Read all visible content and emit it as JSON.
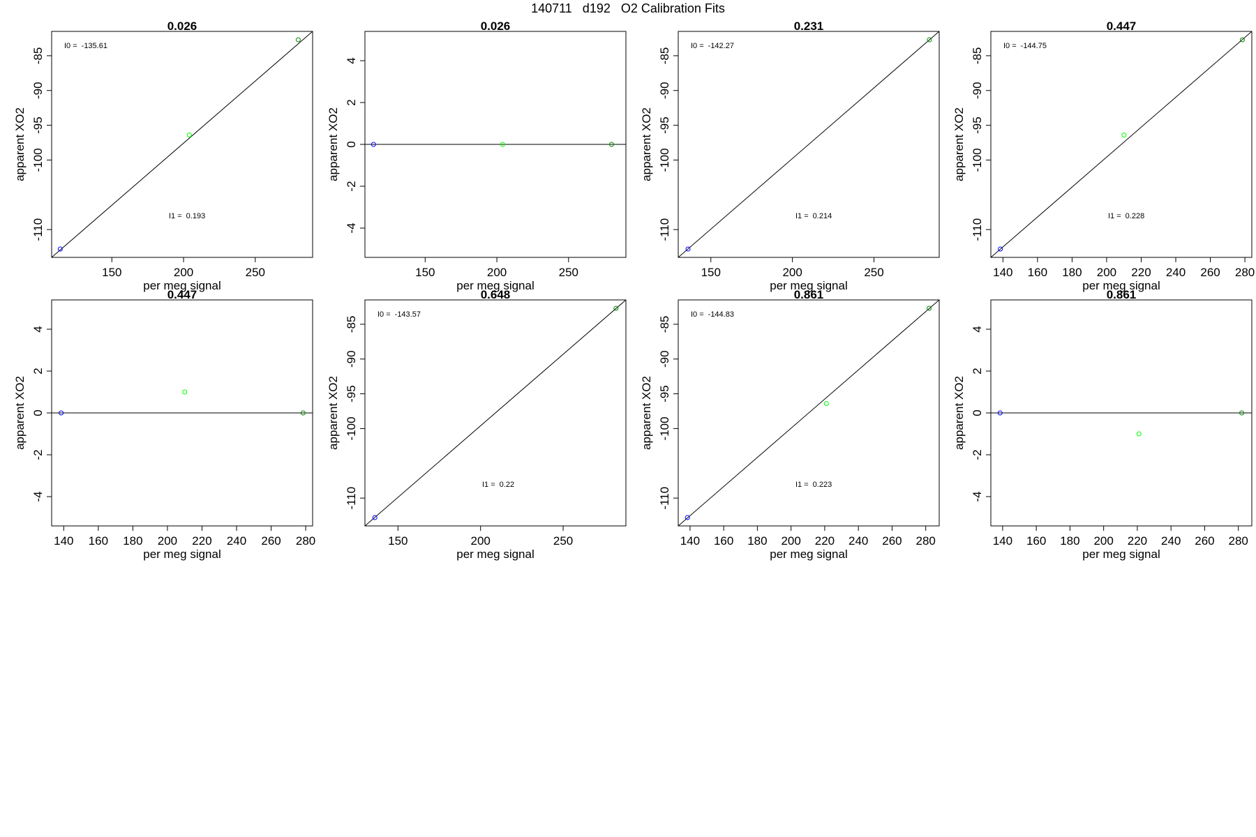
{
  "figure": {
    "title": "140711   d192   O2 Calibration Fits"
  },
  "chart_data": [
    {
      "type": "scatter",
      "title": "0.026",
      "xlabel": "per meg signal",
      "ylabel": "apparent XO2",
      "xlim": [
        108,
        290
      ],
      "ylim": [
        -114.0,
        -81.5
      ],
      "xticks": [
        150,
        200,
        250
      ],
      "yticks": [
        -110,
        -100,
        -95,
        -90,
        -85
      ],
      "fit_line": {
        "from": [
          108,
          -114.0
        ],
        "to": [
          290,
          -81.5
        ]
      },
      "points": [
        {
          "x": 114,
          "y": -112.8,
          "color": "#0000ff"
        },
        {
          "x": 204,
          "y": -96.4,
          "color": "#00ff00"
        },
        {
          "x": 280,
          "y": -82.7,
          "color": "#008800"
        }
      ],
      "annotations": [
        {
          "label": "I0 =",
          "value": "-135.61",
          "pos": "top-left"
        },
        {
          "label": "I1 =",
          "value": "0.193",
          "pos": "lower-middle"
        }
      ]
    },
    {
      "type": "scatter",
      "title": "0.026",
      "xlabel": "per meg signal",
      "ylabel": "apparent XO2",
      "xlim": [
        108,
        290
      ],
      "ylim": [
        -5.4,
        5.4
      ],
      "xticks": [
        150,
        200,
        250
      ],
      "yticks": [
        -4,
        -2,
        0,
        2,
        4
      ],
      "fit_line": {
        "from": [
          108,
          0
        ],
        "to": [
          290,
          0
        ]
      },
      "points": [
        {
          "x": 114,
          "y": 0,
          "color": "#0000ff"
        },
        {
          "x": 204,
          "y": 0,
          "color": "#00ff00"
        },
        {
          "x": 280,
          "y": 0,
          "color": "#008800"
        }
      ],
      "annotations": []
    },
    {
      "type": "scatter",
      "title": "0.231",
      "xlabel": "per meg signal",
      "ylabel": "apparent XO2",
      "xlim": [
        130,
        290
      ],
      "ylim": [
        -114.0,
        -81.5
      ],
      "xticks": [
        150,
        200,
        250
      ],
      "yticks": [
        -110,
        -100,
        -95,
        -90,
        -85
      ],
      "fit_line": {
        "from": [
          130,
          -114.0
        ],
        "to": [
          290,
          -81.5
        ]
      },
      "points": [
        {
          "x": 136,
          "y": -112.8,
          "color": "#0000ff"
        },
        {
          "x": 284,
          "y": -82.7,
          "color": "#008800"
        }
      ],
      "annotations": [
        {
          "label": "I0 =",
          "value": "-142.27",
          "pos": "top-left"
        },
        {
          "label": "I1 =",
          "value": "0.214",
          "pos": "lower-middle"
        }
      ]
    },
    {
      "type": "scatter",
      "title": "0.447",
      "xlabel": "per meg signal",
      "ylabel": "apparent XO2",
      "xlim": [
        133,
        284
      ],
      "ylim": [
        -114.0,
        -81.5
      ],
      "xticks": [
        140,
        160,
        180,
        200,
        220,
        240,
        260,
        280
      ],
      "yticks": [
        -110,
        -100,
        -95,
        -90,
        -85
      ],
      "fit_line": {
        "from": [
          133,
          -114.0
        ],
        "to": [
          284,
          -81.5
        ]
      },
      "points": [
        {
          "x": 138.5,
          "y": -112.8,
          "color": "#0000ff"
        },
        {
          "x": 210,
          "y": -96.4,
          "color": "#00ff00"
        },
        {
          "x": 278.5,
          "y": -82.7,
          "color": "#008800"
        }
      ],
      "annotations": [
        {
          "label": "I0 =",
          "value": "-144.75",
          "pos": "top-left"
        },
        {
          "label": "I1 =",
          "value": "0.228",
          "pos": "lower-middle"
        }
      ]
    },
    {
      "type": "scatter",
      "title": "0.447",
      "xlabel": "per meg signal",
      "ylabel": "apparent XO2",
      "xlim": [
        133,
        284
      ],
      "ylim": [
        -5.4,
        5.4
      ],
      "xticks": [
        140,
        160,
        180,
        200,
        220,
        240,
        260,
        280
      ],
      "yticks": [
        -4,
        -2,
        0,
        2,
        4
      ],
      "fit_line": {
        "from": [
          133,
          0
        ],
        "to": [
          284,
          0
        ]
      },
      "points": [
        {
          "x": 138.5,
          "y": 0,
          "color": "#0000ff"
        },
        {
          "x": 210,
          "y": 1,
          "color": "#00ff00"
        },
        {
          "x": 278.5,
          "y": 0,
          "color": "#008800"
        }
      ],
      "annotations": []
    },
    {
      "type": "scatter",
      "title": "0.648",
      "xlabel": "per meg signal",
      "ylabel": "apparent XO2",
      "xlim": [
        130,
        288
      ],
      "ylim": [
        -114.0,
        -81.5
      ],
      "xticks": [
        150,
        200,
        250
      ],
      "yticks": [
        -110,
        -100,
        -95,
        -90,
        -85
      ],
      "fit_line": {
        "from": [
          130,
          -114.0
        ],
        "to": [
          288,
          -81.5
        ]
      },
      "points": [
        {
          "x": 136,
          "y": -112.8,
          "color": "#0000ff"
        },
        {
          "x": 282,
          "y": -82.7,
          "color": "#008800"
        }
      ],
      "annotations": [
        {
          "label": "I0 =",
          "value": "-143.57",
          "pos": "top-left"
        },
        {
          "label": "I1 =",
          "value": "0.22",
          "pos": "lower-middle"
        }
      ]
    },
    {
      "type": "scatter",
      "title": "0.861",
      "xlabel": "per meg signal",
      "ylabel": "apparent XO2",
      "xlim": [
        133,
        288
      ],
      "ylim": [
        -114.0,
        -81.5
      ],
      "xticks": [
        140,
        160,
        180,
        200,
        220,
        240,
        260,
        280
      ],
      "yticks": [
        -110,
        -100,
        -95,
        -90,
        -85
      ],
      "fit_line": {
        "from": [
          133,
          -114.0
        ],
        "to": [
          288,
          -81.5
        ]
      },
      "points": [
        {
          "x": 138.5,
          "y": -112.8,
          "color": "#0000ff"
        },
        {
          "x": 221,
          "y": -96.4,
          "color": "#00ff00"
        },
        {
          "x": 282,
          "y": -82.7,
          "color": "#008800"
        }
      ],
      "annotations": [
        {
          "label": "I0 =",
          "value": "-144.83",
          "pos": "top-left"
        },
        {
          "label": "I1 =",
          "value": "0.223",
          "pos": "lower-middle"
        }
      ]
    },
    {
      "type": "scatter",
      "title": "0.861",
      "xlabel": "per meg signal",
      "ylabel": "apparent XO2",
      "xlim": [
        133,
        288
      ],
      "ylim": [
        -5.4,
        5.4
      ],
      "xticks": [
        140,
        160,
        180,
        200,
        220,
        240,
        260,
        280
      ],
      "yticks": [
        -4,
        -2,
        0,
        2,
        4
      ],
      "fit_line": {
        "from": [
          133,
          0
        ],
        "to": [
          288,
          0
        ]
      },
      "points": [
        {
          "x": 138.5,
          "y": 0,
          "color": "#0000ff"
        },
        {
          "x": 221,
          "y": -1,
          "color": "#00ff00"
        },
        {
          "x": 282,
          "y": 0,
          "color": "#008800"
        }
      ],
      "annotations": []
    }
  ]
}
